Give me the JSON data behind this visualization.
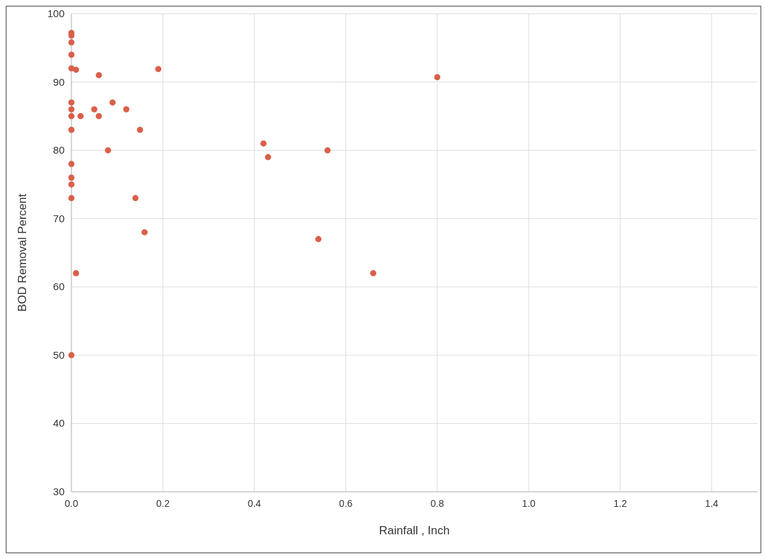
{
  "chart_data": {
    "type": "scatter",
    "xlabel": "Rainfall , Inch",
    "ylabel": "BOD Removal Percent",
    "x": [
      0,
      0,
      0,
      0,
      0,
      0,
      0,
      0,
      0,
      0,
      0,
      0,
      0,
      0,
      0.01,
      0.06,
      0.19,
      0.01,
      0.02,
      0.05,
      0.06,
      0.09,
      0.12,
      0.15,
      0.08,
      0.14,
      0.16,
      0.42,
      0.43,
      0.56,
      0.54,
      0.66,
      0.8
    ],
    "values": [
      97.2,
      96.8,
      95.8,
      94,
      92,
      87,
      86,
      85,
      83,
      78,
      76,
      75,
      73,
      50,
      91.8,
      91,
      91.9,
      62,
      85,
      86,
      85,
      87,
      86,
      83,
      80,
      73,
      68,
      81,
      79,
      80,
      67,
      62,
      90.7
    ],
    "color": "#d9604a",
    "marker": "circle",
    "grid": true,
    "xlim": [
      0,
      1.5
    ],
    "xticks": [
      {
        "value": 0,
        "label": "0.0"
      },
      {
        "value": 0.2,
        "label": "0.2"
      },
      {
        "value": 0.4,
        "label": "0.4"
      },
      {
        "value": 0.6,
        "label": "0.6"
      },
      {
        "value": 0.8,
        "label": "0.8"
      },
      {
        "value": 1,
        "label": "1.0"
      },
      {
        "value": 1.2,
        "label": "1.2"
      },
      {
        "value": 1.4,
        "label": "1.4"
      }
    ],
    "ylim": [
      30,
      100
    ],
    "yticks": [
      30,
      40,
      50,
      60,
      70,
      80,
      90,
      100
    ]
  }
}
